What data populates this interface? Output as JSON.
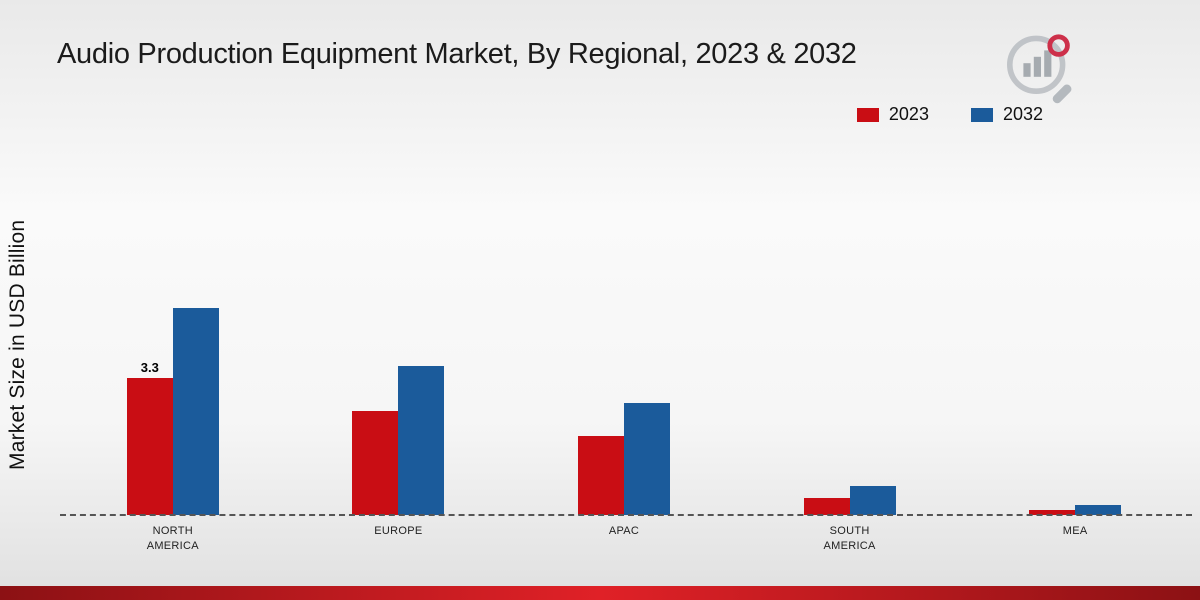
{
  "title": "Audio Production Equipment Market, By Regional, 2023 & 2032",
  "ylabel": "Market Size in USD Billion",
  "legend": [
    {
      "label": "2023",
      "color": "#c90d14"
    },
    {
      "label": "2032",
      "color": "#1b5b9b"
    }
  ],
  "chart_data": {
    "type": "bar",
    "categories": [
      "NORTH AMERICA",
      "EUROPE",
      "APAC",
      "SOUTH AMERICA",
      "MEA"
    ],
    "series": [
      {
        "name": "2023",
        "color": "#c90d14",
        "values": [
          3.3,
          2.5,
          1.9,
          0.4,
          0.12
        ]
      },
      {
        "name": "2032",
        "color": "#1b5b9b",
        "values": [
          5.0,
          3.6,
          2.7,
          0.7,
          0.25
        ]
      }
    ],
    "annotations": [
      {
        "series": "2023",
        "category": "NORTH AMERICA",
        "text": "3.3"
      }
    ],
    "ylim": [
      0,
      5.5
    ],
    "grid": false,
    "legend_position": "top-right",
    "baseline": "dashed"
  },
  "colors": {
    "bar_2023": "#c90d14",
    "bar_2032": "#1b5b9b",
    "accent_bar_dark": "#8c1114",
    "accent_bar_bright": "#e02127"
  }
}
